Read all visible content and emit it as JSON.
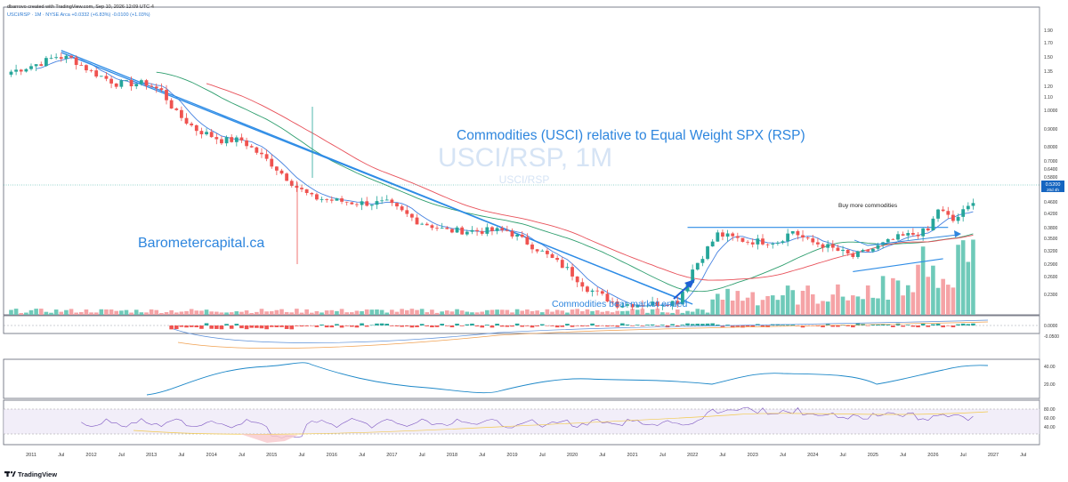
{
  "header": {
    "creator": "dbarrovo created with TradingView.com, Sep 10, 2026 12:09 UTC-4",
    "symbol_line": "USCI/RSP · 1M · NYSE Arca  +0.0332 (+6.83%)  -0.0100 (+1.03%)"
  },
  "watermark": {
    "main": "USCI/RSP, 1M",
    "sub": "USCI/RSP"
  },
  "annotations": {
    "title": "Commodities (USCI) relative to Equal Weight SPX (RSP)",
    "brand": "Barometercapital.ca",
    "bear_ended": "Commodities bear market ended",
    "buy_more": "Buy more commodities"
  },
  "price_tag": {
    "value": "0.5200",
    "sub": "20d 4h"
  },
  "footer": {
    "logo_text": "TradingView"
  },
  "colors": {
    "up": "#26a69a",
    "down": "#ef5350",
    "trend": "#2e8ce6",
    "ma_fast": "#4682e0",
    "ma_mid": "#2e9e6e",
    "ma_slow": "#e8515a",
    "vol_up": "#6fcab9",
    "vol_down": "#f5a3a6",
    "rsi_line": "#7e57c2",
    "rsi_band": "#ede7f6",
    "rsi_signal": "#f2c94c",
    "osc_line": "#1e88c8"
  },
  "chart_data": [
    {
      "type": "candlestick",
      "symbol": "USCI/RSP",
      "interval": "1M",
      "scale": "log",
      "ylim": [
        0.215,
        1.9
      ],
      "x_tick_labels": [
        "2011",
        "Jul",
        "2012",
        "Jul",
        "2013",
        "Jul",
        "2014",
        "Jul",
        "2015",
        "Jul",
        "2016",
        "Jul",
        "2017",
        "Jul",
        "2018",
        "Jul",
        "2019",
        "Jul",
        "2020",
        "Jul",
        "2021",
        "Jul",
        "2022",
        "Jul",
        "2023",
        "Jul",
        "2024",
        "Jul",
        "2025",
        "Jul",
        "2026",
        "Jul",
        "2027",
        "Jul"
      ],
      "y_tick_labels": [
        "1.90",
        "1.70",
        "1.50",
        "1.35",
        "1.20",
        "1.10",
        "1.0000",
        "0.9000",
        "0.8000",
        "0.7000",
        "0.6400",
        "0.5800",
        "0.4600",
        "0.4200",
        "0.3800",
        "0.3500",
        "0.3200",
        "0.2900",
        "0.2600",
        "0.2300"
      ],
      "last_value": 0.52,
      "trend_lines": [
        {
          "from": [
            "2011-07",
            1.48
          ],
          "to": [
            "2022-01",
            0.26
          ]
        },
        {
          "from": [
            "2011-07",
            1.46
          ],
          "to": [
            "2021-11",
            0.268
          ]
        },
        {
          "from": [
            "2021-12",
            0.44
          ],
          "to": [
            "2026-04",
            0.44
          ]
        },
        {
          "from": [
            "2024-09",
            0.325
          ],
          "to": [
            "2026-03",
            0.355
          ]
        }
      ],
      "approx_path": [
        [
          "2010-09",
          1.28
        ],
        [
          "2011-03",
          1.36
        ],
        [
          "2011-06",
          1.42
        ],
        [
          "2011-09",
          1.4
        ],
        [
          "2012-01",
          1.28
        ],
        [
          "2012-06",
          1.18
        ],
        [
          "2012-12",
          1.18
        ],
        [
          "2013-03",
          1.12
        ],
        [
          "2013-06",
          0.96
        ],
        [
          "2013-10",
          0.86
        ],
        [
          "2014-03",
          0.8
        ],
        [
          "2014-07",
          0.8
        ],
        [
          "2015-01",
          0.68
        ],
        [
          "2015-06",
          0.58
        ],
        [
          "2015-09",
          0.54
        ],
        [
          "2016-01",
          0.53
        ],
        [
          "2016-06",
          0.52
        ],
        [
          "2016-12",
          0.52
        ],
        [
          "2017-06",
          0.46
        ],
        [
          "2017-12",
          0.43
        ],
        [
          "2018-06",
          0.43
        ],
        [
          "2018-12",
          0.43
        ],
        [
          "2019-06",
          0.38
        ],
        [
          "2019-12",
          0.33
        ],
        [
          "2020-04",
          0.29
        ],
        [
          "2020-10",
          0.26
        ],
        [
          "2021-04",
          0.26
        ],
        [
          "2021-10",
          0.265
        ],
        [
          "2022-01",
          0.33
        ],
        [
          "2022-06",
          0.42
        ],
        [
          "2022-12",
          0.4
        ],
        [
          "2023-06",
          0.4
        ],
        [
          "2023-09",
          0.43
        ],
        [
          "2023-12",
          0.4
        ],
        [
          "2024-03",
          0.39
        ],
        [
          "2024-09",
          0.36
        ],
        [
          "2025-01",
          0.38
        ],
        [
          "2025-06",
          0.41
        ],
        [
          "2025-12",
          0.43
        ],
        [
          "2026-02",
          0.5
        ],
        [
          "2026-05",
          0.46
        ],
        [
          "2026-09",
          0.52
        ]
      ]
    },
    {
      "type": "histogram",
      "name": "oscillator",
      "y_tick_labels": [
        "0.0000",
        "-0.0500"
      ]
    },
    {
      "type": "line",
      "name": "indicator",
      "y_tick_labels": [
        "40.00",
        "20.00"
      ]
    },
    {
      "type": "line",
      "name": "rsi",
      "y_tick_labels": [
        "80.00",
        "60.00",
        "40.00"
      ]
    }
  ]
}
